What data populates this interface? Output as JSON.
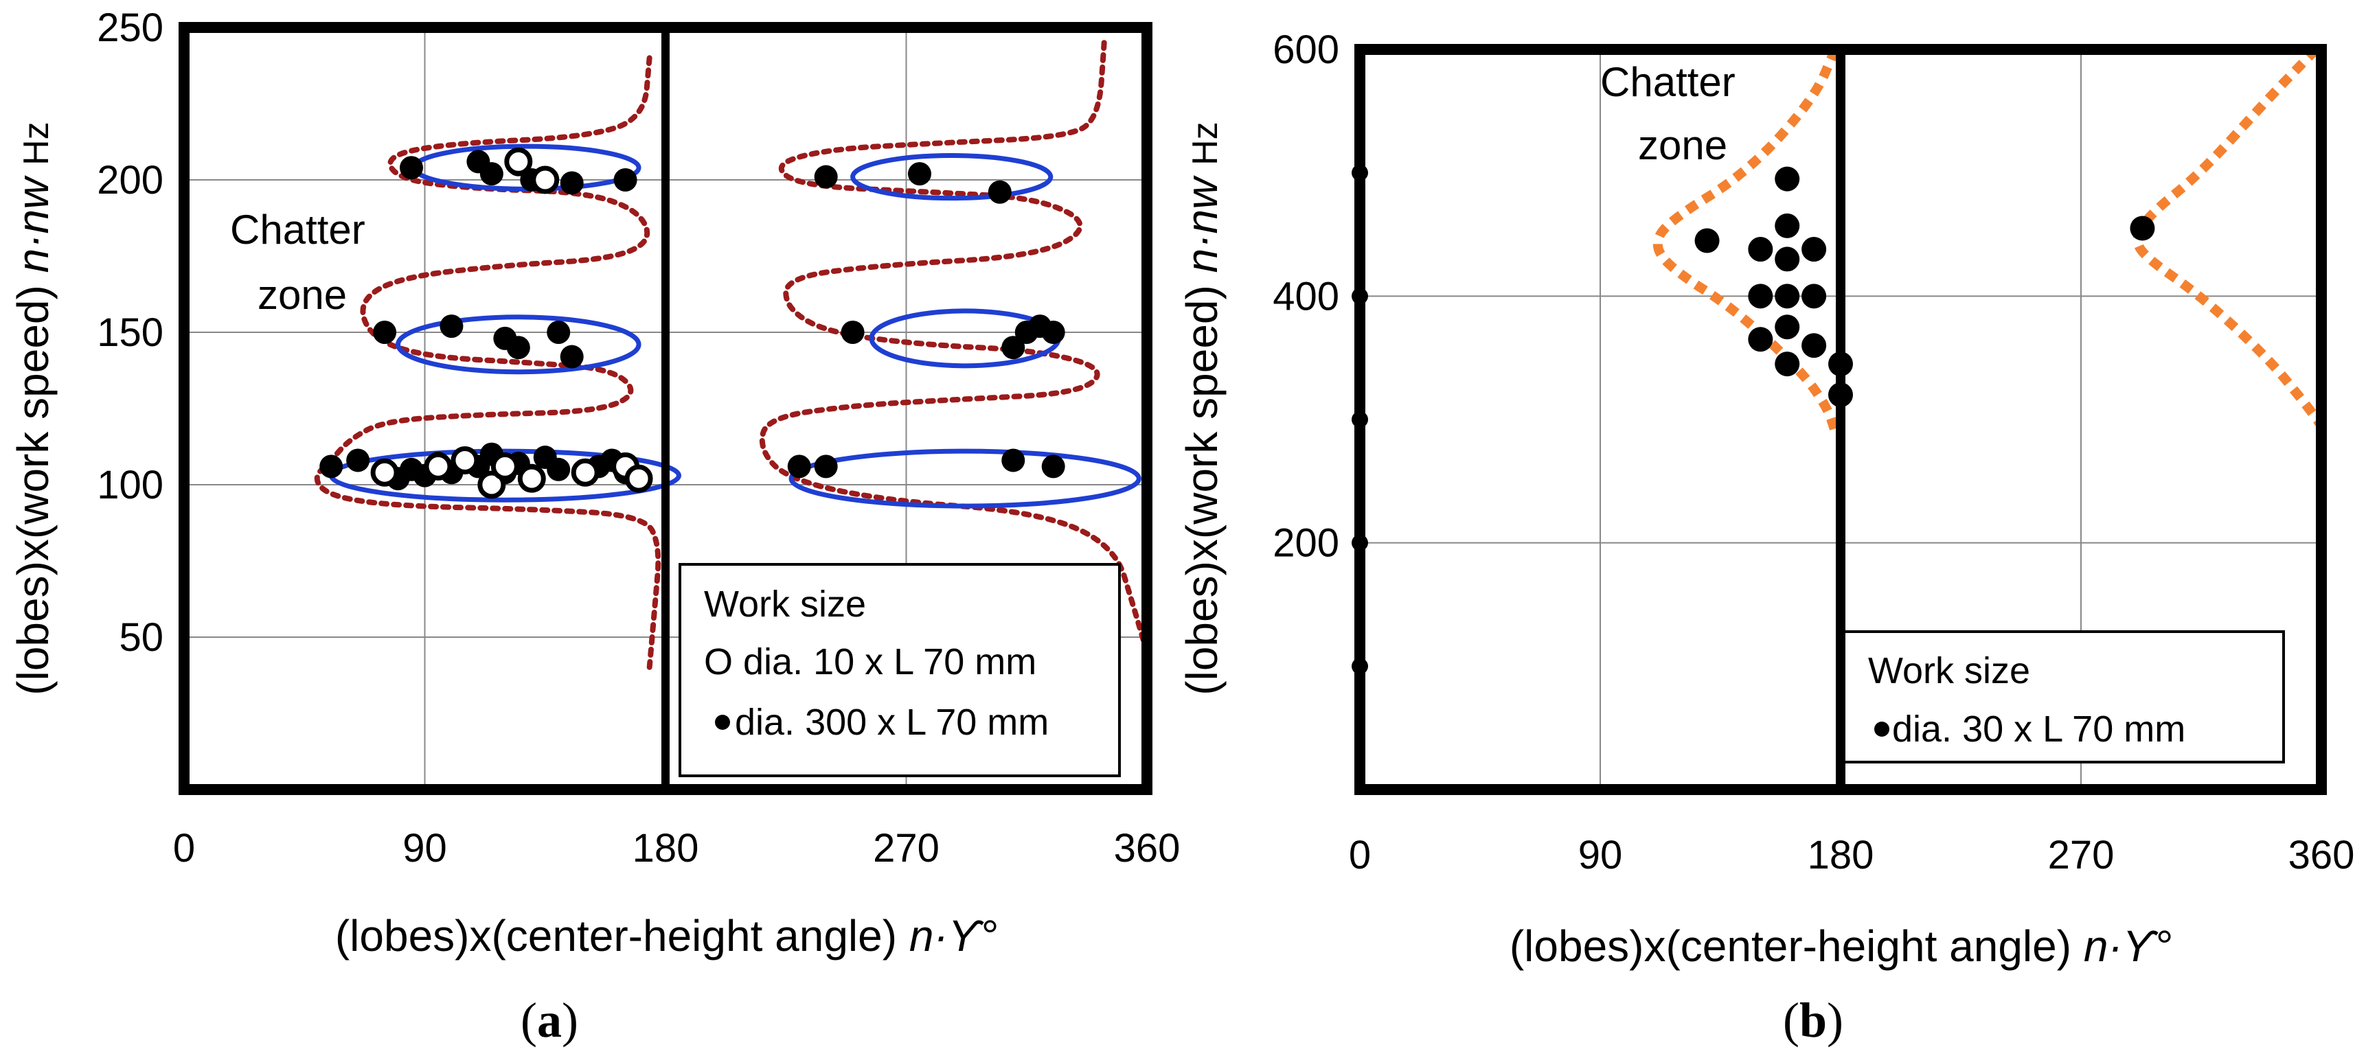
{
  "colors": {
    "axis": "#000000",
    "grid": "#888888",
    "ellipse": "#1f3fd2",
    "boundary_a": "#9b1b1b",
    "boundary_b": "#f4812f",
    "marker": "#000000"
  },
  "chart_data": [
    {
      "panel": "a",
      "type": "scatter",
      "caption_open": "(",
      "caption_letter": "a",
      "caption_close": ")",
      "ylabel_main": "(lobes)x(work speed) ",
      "ylabel_var": "n·nw",
      "ylabel_unit": "Hz",
      "xlabel_main": "(lobes)x(center-height angle) ",
      "xlabel_var": "n·ϒ°",
      "xlim": [
        0,
        360
      ],
      "ylim": [
        0,
        250
      ],
      "x_ticks": [
        0,
        90,
        180,
        270,
        360
      ],
      "y_ticks": [
        50,
        100,
        150,
        200,
        250
      ],
      "x_grid": [
        90,
        270
      ],
      "y_grid": [
        50,
        100,
        150,
        200
      ],
      "divider_x": 180,
      "annotation": {
        "line1": "Chatter",
        "line2": "zone"
      },
      "legend": {
        "title": "Work size",
        "entry1": "O dia. 10 x L 70 mm",
        "entry2": "dia. 300 x L 70 mm"
      },
      "ellipses": [
        {
          "cx": 120,
          "cy": 103,
          "rx": 65,
          "ry": 8
        },
        {
          "cx": 125,
          "cy": 146,
          "rx": 45,
          "ry": 9
        },
        {
          "cx": 128,
          "cy": 204,
          "rx": 42,
          "ry": 7
        },
        {
          "cx": 292,
          "cy": 102,
          "rx": 65,
          "ry": 9
        },
        {
          "cx": 292,
          "cy": 148,
          "rx": 35,
          "ry": 9
        },
        {
          "cx": 287,
          "cy": 201,
          "rx": 37,
          "ry": 7
        }
      ],
      "boundary_left": [
        [
          174,
          240
        ],
        [
          172,
          220
        ],
        [
          150,
          214
        ],
        [
          100,
          212
        ],
        [
          75,
          208
        ],
        [
          80,
          200
        ],
        [
          110,
          197
        ],
        [
          150,
          196
        ],
        [
          170,
          190
        ],
        [
          175,
          180
        ],
        [
          160,
          174
        ],
        [
          120,
          172
        ],
        [
          80,
          168
        ],
        [
          65,
          160
        ],
        [
          70,
          148
        ],
        [
          90,
          142
        ],
        [
          130,
          140
        ],
        [
          160,
          138
        ],
        [
          170,
          130
        ],
        [
          155,
          124
        ],
        [
          110,
          123
        ],
        [
          75,
          121
        ],
        [
          62,
          115
        ],
        [
          55,
          108
        ],
        [
          48,
          102
        ],
        [
          55,
          96
        ],
        [
          80,
          93
        ],
        [
          130,
          92
        ],
        [
          172,
          90
        ],
        [
          178,
          80
        ],
        [
          176,
          60
        ],
        [
          174,
          40
        ]
      ],
      "boundary_right": [
        [
          344,
          245
        ],
        [
          342,
          220
        ],
        [
          330,
          214
        ],
        [
          280,
          212
        ],
        [
          240,
          210
        ],
        [
          220,
          205
        ],
        [
          230,
          198
        ],
        [
          280,
          196
        ],
        [
          320,
          194
        ],
        [
          340,
          185
        ],
        [
          320,
          175
        ],
        [
          260,
          172
        ],
        [
          225,
          168
        ],
        [
          225,
          158
        ],
        [
          240,
          150
        ],
        [
          275,
          146
        ],
        [
          320,
          144
        ],
        [
          345,
          138
        ],
        [
          335,
          130
        ],
        [
          290,
          128
        ],
        [
          250,
          126
        ],
        [
          218,
          122
        ],
        [
          215,
          112
        ],
        [
          225,
          102
        ],
        [
          260,
          95
        ],
        [
          320,
          91
        ],
        [
          348,
          80
        ],
        [
          355,
          60
        ],
        [
          360,
          45
        ]
      ],
      "series": [
        {
          "name": "dia. 300 x L 70 mm",
          "marker": "filled",
          "x": [
            55,
            65,
            75,
            80,
            85,
            90,
            95,
            100,
            105,
            110,
            115,
            120,
            125,
            130,
            135,
            140,
            155,
            160,
            165,
            85,
            110,
            115,
            125,
            130,
            145,
            165,
            75,
            100,
            120,
            125,
            140,
            145,
            240,
            275,
            305,
            310,
            315,
            320,
            325,
            250,
            310,
            325,
            230,
            240
          ],
          "y": [
            106,
            108,
            104,
            102,
            105,
            103,
            107,
            104,
            108,
            106,
            110,
            104,
            107,
            103,
            109,
            105,
            106,
            108,
            104,
            204,
            206,
            202,
            205,
            200,
            199,
            200,
            150,
            152,
            148,
            145,
            150,
            142,
            201,
            202,
            196,
            145,
            150,
            152,
            150,
            150,
            108,
            106,
            106,
            106
          ]
        },
        {
          "name": "O dia. 10 x L 70 mm",
          "marker": "open",
          "x": [
            75,
            95,
            105,
            115,
            120,
            130,
            150,
            165,
            170,
            125,
            135
          ],
          "y": [
            104,
            106,
            108,
            100,
            106,
            102,
            104,
            106,
            102,
            206,
            200
          ]
        }
      ]
    },
    {
      "panel": "b",
      "type": "scatter",
      "caption_open": "(",
      "caption_letter": "b",
      "caption_close": ")",
      "ylabel_main": "(lobes)x(work speed) ",
      "ylabel_var": "n·nw",
      "ylabel_unit": "Hz",
      "xlabel_main": "(lobes)x(center-height angle) ",
      "xlabel_var": "n·ϒ°",
      "xlim": [
        0,
        360
      ],
      "ylim": [
        0,
        600
      ],
      "x_ticks": [
        0,
        90,
        180,
        270,
        360
      ],
      "y_ticks": [
        200,
        400,
        600
      ],
      "y_minor_ticks": [
        100,
        200,
        300,
        400,
        500
      ],
      "x_grid": [
        90,
        270
      ],
      "y_grid": [
        200,
        400
      ],
      "divider_x": 180,
      "annotation": {
        "line1": "Chatter",
        "line2": "zone"
      },
      "legend": {
        "title": "Work size",
        "entry1": "dia. 30 x L 70 mm"
      },
      "boundary_left": [
        [
          178,
          600
        ],
        [
          170,
          560
        ],
        [
          145,
          500
        ],
        [
          115,
          460
        ],
        [
          110,
          440
        ],
        [
          118,
          420
        ],
        [
          140,
          390
        ],
        [
          165,
          340
        ],
        [
          175,
          310
        ],
        [
          178,
          290
        ]
      ],
      "boundary_right": [
        [
          358,
          600
        ],
        [
          340,
          560
        ],
        [
          315,
          500
        ],
        [
          295,
          465
        ],
        [
          290,
          445
        ],
        [
          295,
          430
        ],
        [
          315,
          400
        ],
        [
          340,
          350
        ],
        [
          355,
          310
        ],
        [
          360,
          295
        ]
      ],
      "series": [
        {
          "name": "dia. 30 x L 70 mm",
          "marker": "filled",
          "x": [
            130,
            160,
            150,
            160,
            170,
            160,
            150,
            160,
            170,
            150,
            160,
            170,
            160,
            180,
            180,
            293
          ],
          "y": [
            445,
            495,
            438,
            457,
            438,
            430,
            400,
            400,
            400,
            365,
            375,
            360,
            345,
            345,
            320,
            455
          ]
        }
      ]
    }
  ]
}
